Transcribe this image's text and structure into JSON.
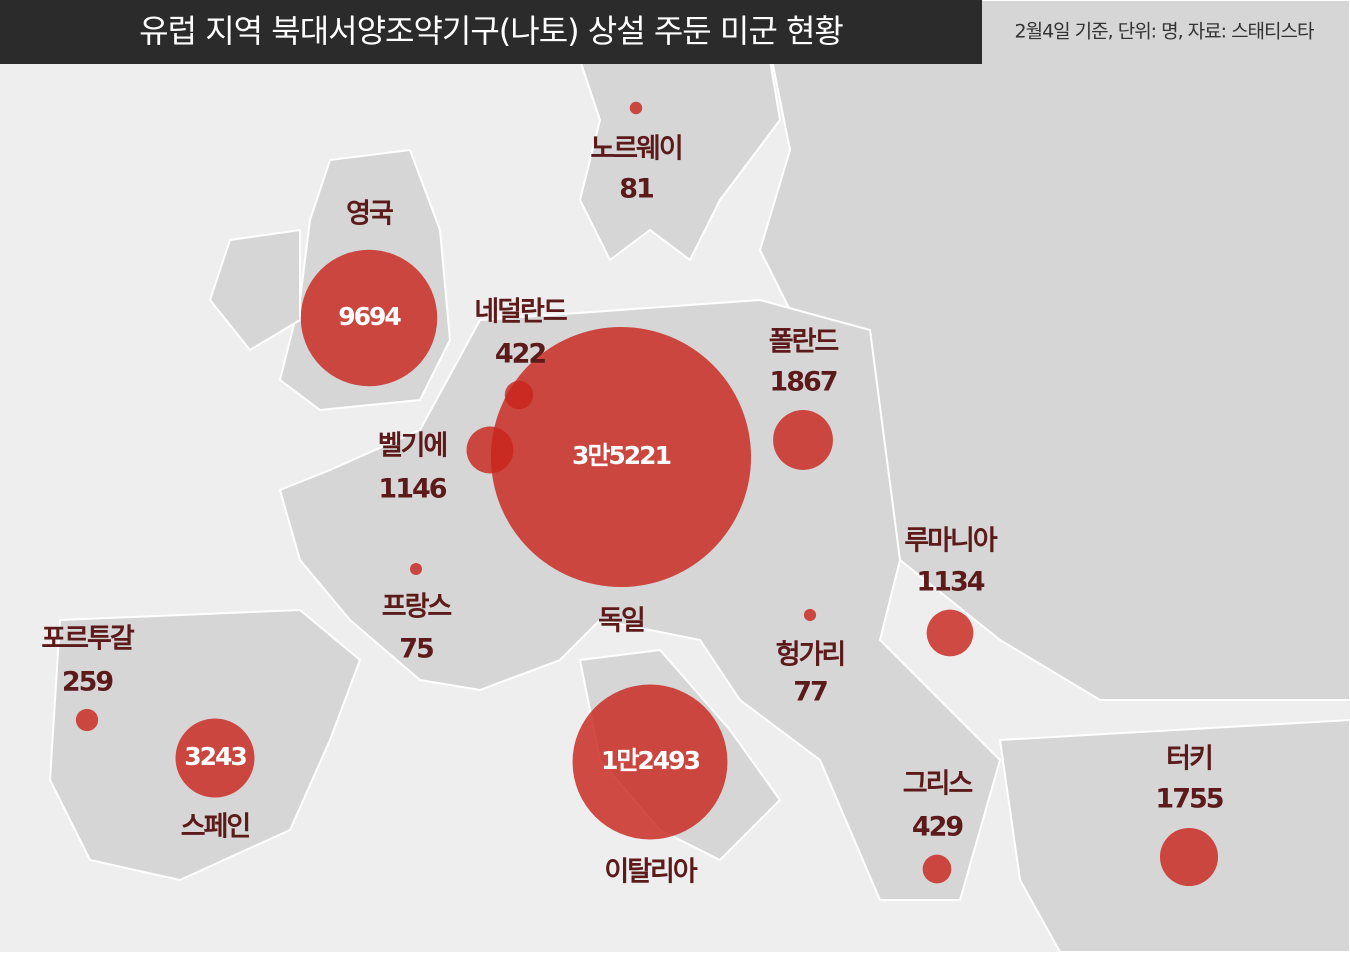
{
  "title": "유럽 지역 북대서양조약기구(나토) 상설 주둔 미군 현황",
  "note": "2월4일 기준, 단위: 명, 자료: 스태티스타",
  "countries": [
    {
      "name": "노르웨이",
      "value": 81
    },
    {
      "name": "영국",
      "value": 9694
    },
    {
      "name": "네덜란드",
      "value": 422
    },
    {
      "name": "벨기에",
      "value": 1146
    },
    {
      "name": "독일",
      "value": 35221,
      "value_label": "3만5221"
    },
    {
      "name": "폴란드",
      "value": 1867
    },
    {
      "name": "프랑스",
      "value": 75
    },
    {
      "name": "포르투갈",
      "value": 259
    },
    {
      "name": "스페인",
      "value": 3243
    },
    {
      "name": "이탈리아",
      "value": 12493,
      "value_label": "1만2493"
    },
    {
      "name": "헝가리",
      "value": 77
    },
    {
      "name": "루마니아",
      "value": 1134
    },
    {
      "name": "그리스",
      "value": 429
    },
    {
      "name": "터키",
      "value": 1755
    }
  ]
}
